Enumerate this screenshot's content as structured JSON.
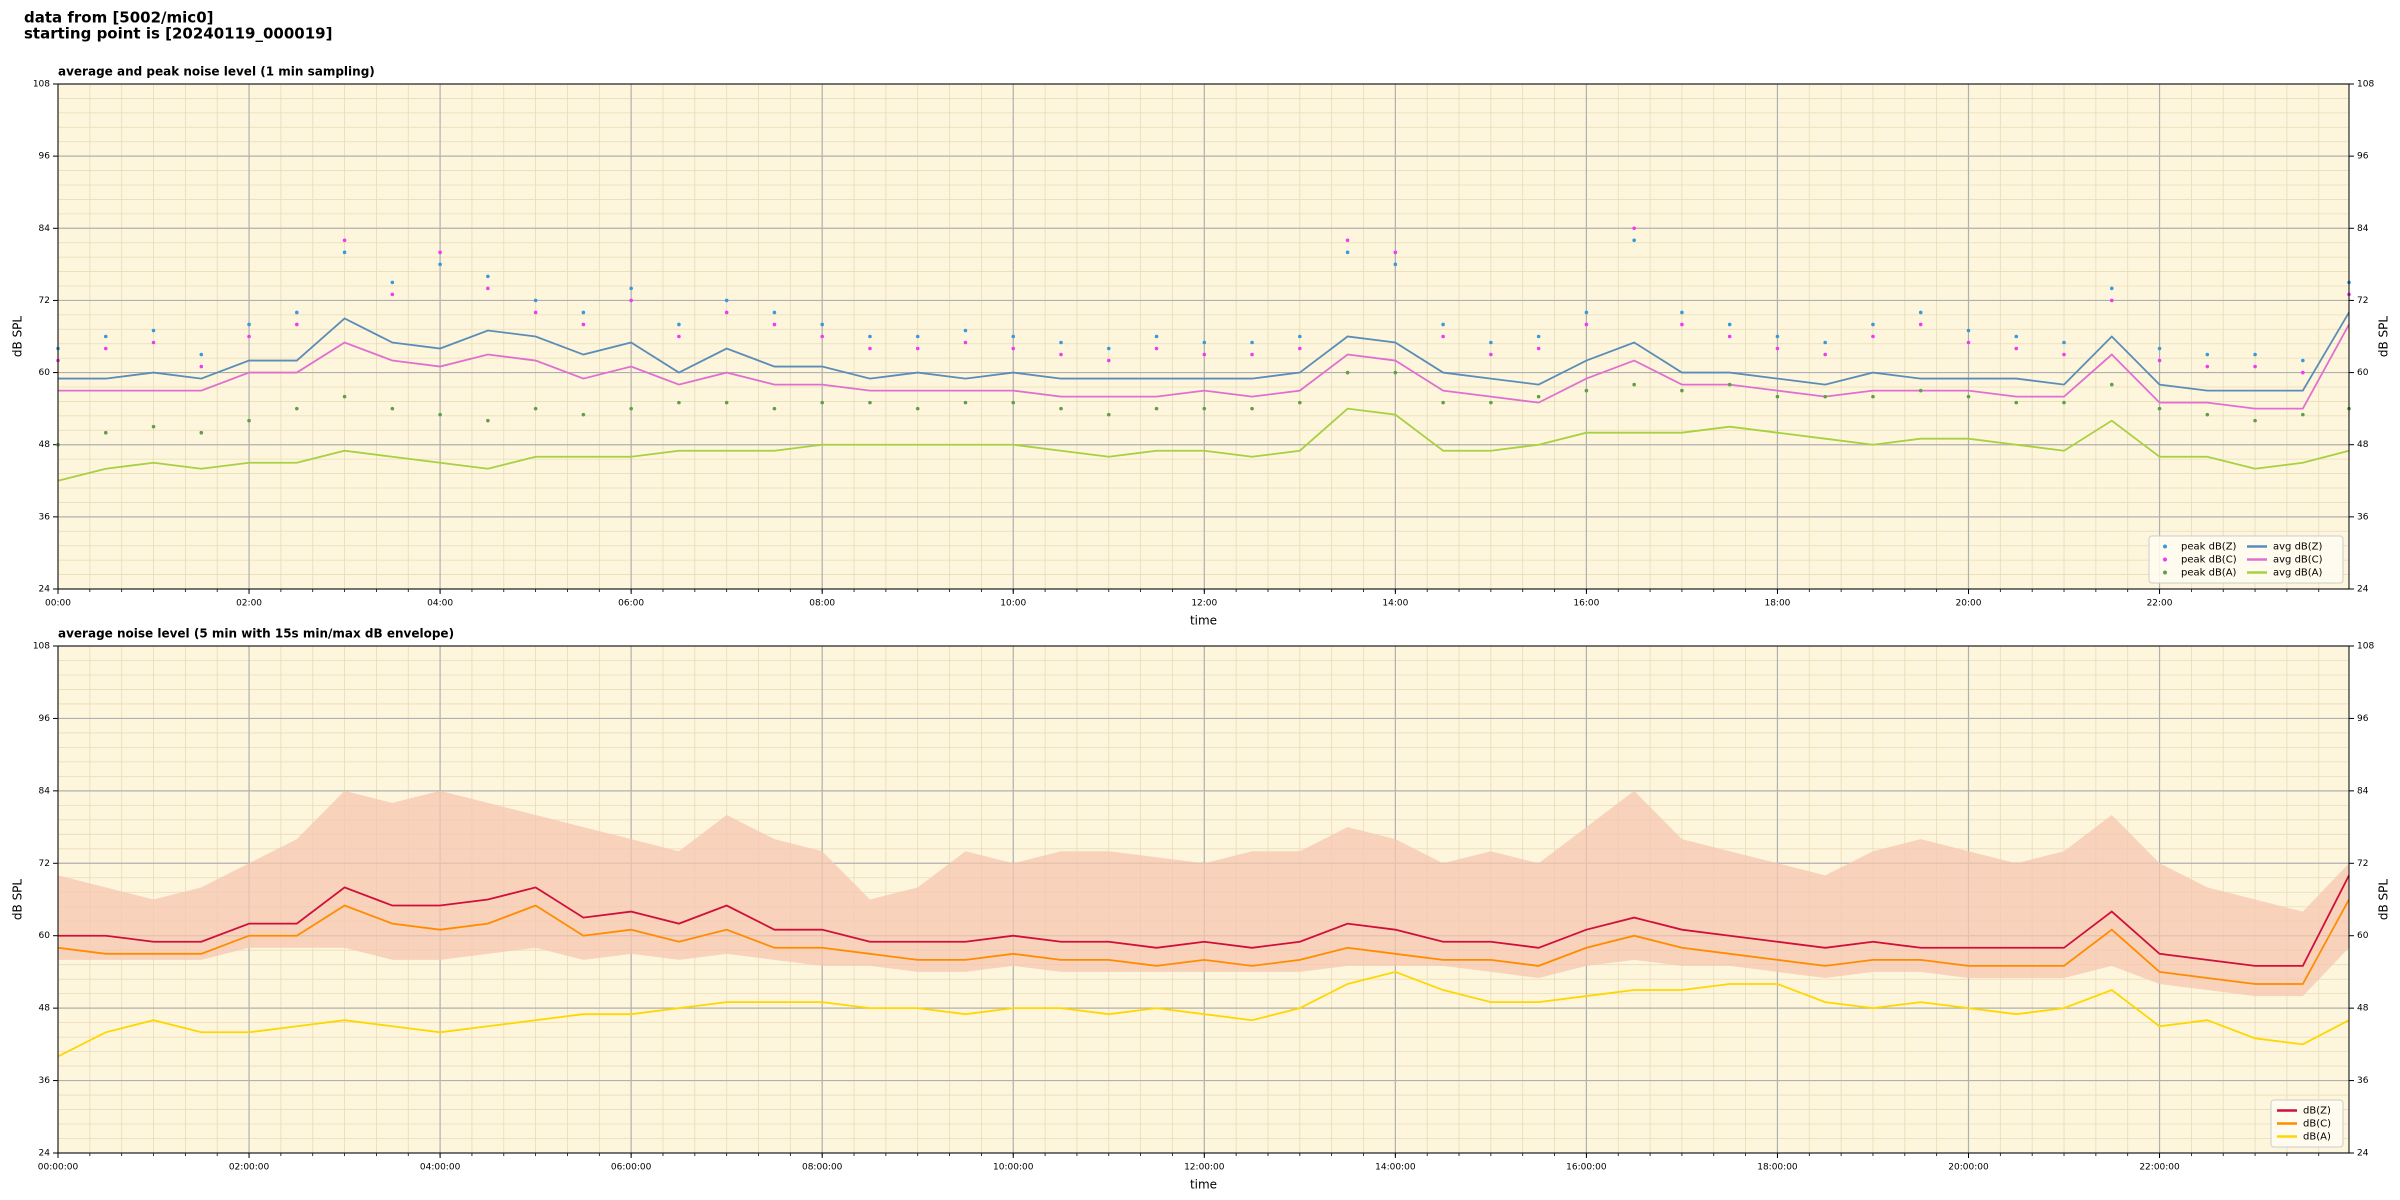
{
  "suptitle": [
    "data from [5002/mic0]",
    "starting point is [20240119_000019]"
  ],
  "chart_data": [
    {
      "type": "line",
      "title": "average and peak noise level (1 min sampling)",
      "xlabel": "time",
      "ylabel": "dB SPL",
      "x": [
        "00:00",
        "00:30",
        "01:00",
        "01:30",
        "02:00",
        "02:30",
        "03:00",
        "03:30",
        "04:00",
        "04:30",
        "05:00",
        "05:30",
        "06:00",
        "06:30",
        "07:00",
        "07:30",
        "08:00",
        "08:30",
        "09:00",
        "09:30",
        "10:00",
        "10:30",
        "11:00",
        "11:30",
        "12:00",
        "12:30",
        "13:00",
        "13:30",
        "14:00",
        "14:30",
        "15:00",
        "15:30",
        "16:00",
        "16:30",
        "17:00",
        "17:30",
        "18:00",
        "18:30",
        "19:00",
        "19:30",
        "20:00",
        "20:30",
        "21:00",
        "21:30",
        "22:00",
        "22:30",
        "23:00",
        "23:30",
        "23:59"
      ],
      "xlim": [
        "00:00",
        "23:59"
      ],
      "xticks": [
        "00:00",
        "02:00",
        "04:00",
        "06:00",
        "08:00",
        "10:00",
        "12:00",
        "14:00",
        "16:00",
        "18:00",
        "20:00",
        "22:00"
      ],
      "xminor": 6,
      "ylim": [
        24,
        108
      ],
      "yticks": [
        24,
        36,
        48,
        60,
        72,
        84,
        96,
        108
      ],
      "yminor": 5,
      "grid": true,
      "background": "#fdf6dc",
      "legend": "lower right",
      "legend_columns": 2,
      "series": [
        {
          "name": "peak dB(Z)",
          "style": "dots",
          "color": "#3a9ad9",
          "values": [
            64,
            66,
            67,
            63,
            68,
            70,
            80,
            75,
            78,
            76,
            72,
            70,
            74,
            68,
            72,
            70,
            68,
            66,
            66,
            67,
            66,
            65,
            64,
            66,
            65,
            65,
            66,
            80,
            78,
            68,
            65,
            66,
            70,
            82,
            70,
            68,
            66,
            65,
            68,
            70,
            67,
            66,
            65,
            74,
            64,
            63,
            63,
            62,
            75
          ]
        },
        {
          "name": "peak dB(C)",
          "style": "dots",
          "color": "#ee3cee",
          "values": [
            62,
            64,
            65,
            61,
            66,
            68,
            82,
            73,
            80,
            74,
            70,
            68,
            72,
            66,
            70,
            68,
            66,
            64,
            64,
            65,
            64,
            63,
            62,
            64,
            63,
            63,
            64,
            82,
            80,
            66,
            63,
            64,
            68,
            84,
            68,
            66,
            64,
            63,
            66,
            68,
            65,
            64,
            63,
            72,
            62,
            61,
            61,
            60,
            73
          ]
        },
        {
          "name": "peak dB(A)",
          "style": "dots",
          "color": "#5f9f4a",
          "values": [
            48,
            50,
            51,
            50,
            52,
            54,
            56,
            54,
            53,
            52,
            54,
            53,
            54,
            55,
            55,
            54,
            55,
            55,
            54,
            55,
            55,
            54,
            53,
            54,
            54,
            54,
            55,
            60,
            60,
            55,
            55,
            56,
            57,
            58,
            57,
            58,
            56,
            56,
            56,
            57,
            56,
            55,
            55,
            58,
            54,
            53,
            52,
            53,
            54
          ]
        },
        {
          "name": "avg dB(Z)",
          "style": "line",
          "color": "#5b8db8",
          "values": [
            59,
            59,
            60,
            59,
            62,
            62,
            69,
            65,
            64,
            67,
            66,
            63,
            65,
            60,
            64,
            61,
            61,
            59,
            60,
            59,
            60,
            59,
            59,
            59,
            59,
            59,
            60,
            66,
            65,
            60,
            59,
            58,
            62,
            65,
            60,
            60,
            59,
            58,
            60,
            59,
            59,
            59,
            58,
            66,
            58,
            57,
            57,
            57,
            70
          ]
        },
        {
          "name": "avg dB(C)",
          "style": "line",
          "color": "#e070d0",
          "values": [
            57,
            57,
            57,
            57,
            60,
            60,
            65,
            62,
            61,
            63,
            62,
            59,
            61,
            58,
            60,
            58,
            58,
            57,
            57,
            57,
            57,
            56,
            56,
            56,
            57,
            56,
            57,
            63,
            62,
            57,
            56,
            55,
            59,
            62,
            58,
            58,
            57,
            56,
            57,
            57,
            57,
            56,
            56,
            63,
            55,
            55,
            54,
            54,
            68
          ]
        },
        {
          "name": "avg dB(A)",
          "style": "line",
          "color": "#a8d040",
          "values": [
            42,
            44,
            45,
            44,
            45,
            45,
            47,
            46,
            45,
            44,
            46,
            46,
            46,
            47,
            47,
            47,
            48,
            48,
            48,
            48,
            48,
            47,
            46,
            47,
            47,
            46,
            47,
            54,
            53,
            47,
            47,
            48,
            50,
            50,
            50,
            51,
            50,
            49,
            48,
            49,
            49,
            48,
            47,
            52,
            46,
            46,
            44,
            45,
            47
          ]
        }
      ]
    },
    {
      "type": "line",
      "title": "average noise level (5 min with 15s min/max dB envelope)",
      "xlabel": "time",
      "ylabel": "dB SPL",
      "x": [
        "00:00:00",
        "00:30:00",
        "01:00:00",
        "01:30:00",
        "02:00:00",
        "02:30:00",
        "03:00:00",
        "03:30:00",
        "04:00:00",
        "04:30:00",
        "05:00:00",
        "05:30:00",
        "06:00:00",
        "06:30:00",
        "07:00:00",
        "07:30:00",
        "08:00:00",
        "08:30:00",
        "09:00:00",
        "09:30:00",
        "10:00:00",
        "10:30:00",
        "11:00:00",
        "11:30:00",
        "12:00:00",
        "12:30:00",
        "13:00:00",
        "13:30:00",
        "14:00:00",
        "14:30:00",
        "15:00:00",
        "15:30:00",
        "16:00:00",
        "16:30:00",
        "17:00:00",
        "17:30:00",
        "18:00:00",
        "18:30:00",
        "19:00:00",
        "19:30:00",
        "20:00:00",
        "20:30:00",
        "21:00:00",
        "21:30:00",
        "22:00:00",
        "22:30:00",
        "23:00:00",
        "23:30:00",
        "23:59:00"
      ],
      "xlim": [
        "00:00:00",
        "23:59:00"
      ],
      "xticks": [
        "00:00:00",
        "02:00:00",
        "04:00:00",
        "06:00:00",
        "08:00:00",
        "10:00:00",
        "12:00:00",
        "14:00:00",
        "16:00:00",
        "18:00:00",
        "20:00:00",
        "22:00:00"
      ],
      "xminor": 6,
      "ylim": [
        24,
        108
      ],
      "yticks": [
        24,
        36,
        48,
        60,
        72,
        84,
        96,
        108
      ],
      "yminor": 5,
      "grid": true,
      "background": "#fdf6dc",
      "legend": "lower right",
      "legend_columns": 1,
      "envelope": {
        "color": "#f5c6b0",
        "high": [
          70,
          68,
          66,
          68,
          72,
          76,
          84,
          82,
          84,
          82,
          80,
          78,
          76,
          74,
          80,
          76,
          74,
          66,
          68,
          74,
          72,
          74,
          74,
          73,
          72,
          74,
          74,
          78,
          76,
          72,
          74,
          72,
          78,
          84,
          76,
          74,
          72,
          70,
          74,
          76,
          74,
          72,
          74,
          80,
          72,
          68,
          66,
          64,
          72
        ],
        "low": [
          56,
          56,
          56,
          56,
          58,
          58,
          58,
          56,
          56,
          57,
          58,
          56,
          57,
          56,
          57,
          56,
          55,
          55,
          54,
          54,
          55,
          54,
          54,
          54,
          54,
          54,
          54,
          55,
          55,
          55,
          54,
          53,
          55,
          56,
          55,
          55,
          54,
          53,
          54,
          54,
          53,
          53,
          53,
          55,
          52,
          51,
          50,
          50,
          58
        ]
      },
      "series": [
        {
          "name": "dB(Z)",
          "style": "line",
          "color": "#d0103a",
          "values": [
            60,
            60,
            59,
            59,
            62,
            62,
            68,
            65,
            65,
            66,
            68,
            63,
            64,
            62,
            65,
            61,
            61,
            59,
            59,
            59,
            60,
            59,
            59,
            58,
            59,
            58,
            59,
            62,
            61,
            59,
            59,
            58,
            61,
            63,
            61,
            60,
            59,
            58,
            59,
            58,
            58,
            58,
            58,
            64,
            57,
            56,
            55,
            55,
            70
          ]
        },
        {
          "name": "dB(C)",
          "style": "line",
          "color": "#ff8c00",
          "values": [
            58,
            57,
            57,
            57,
            60,
            60,
            65,
            62,
            61,
            62,
            65,
            60,
            61,
            59,
            61,
            58,
            58,
            57,
            56,
            56,
            57,
            56,
            56,
            55,
            56,
            55,
            56,
            58,
            57,
            56,
            56,
            55,
            58,
            60,
            58,
            57,
            56,
            55,
            56,
            56,
            55,
            55,
            55,
            61,
            54,
            53,
            52,
            52,
            66
          ]
        },
        {
          "name": "dB(A)",
          "style": "line",
          "color": "#ffd700",
          "values": [
            40,
            44,
            46,
            44,
            44,
            45,
            46,
            45,
            44,
            45,
            46,
            47,
            47,
            48,
            49,
            49,
            49,
            48,
            48,
            47,
            48,
            48,
            47,
            48,
            47,
            46,
            48,
            52,
            54,
            51,
            49,
            49,
            50,
            51,
            51,
            52,
            52,
            49,
            48,
            49,
            48,
            47,
            48,
            51,
            45,
            46,
            43,
            42,
            46
          ]
        }
      ]
    }
  ]
}
